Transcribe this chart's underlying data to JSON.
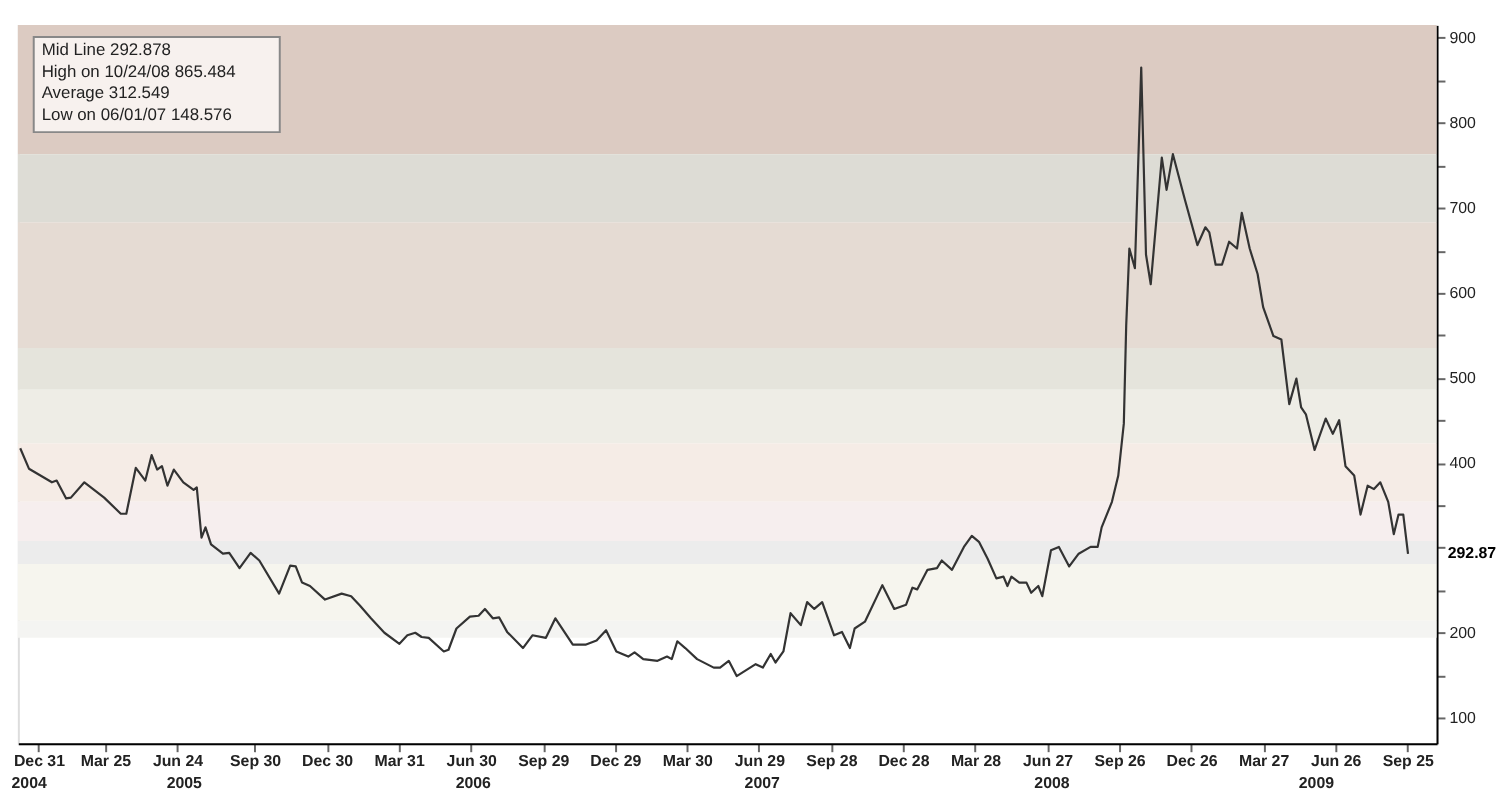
{
  "chart_data": {
    "type": "line",
    "x": [
      "2004-12-08",
      "2004-12-19",
      "2005-01-17",
      "2005-01-23",
      "2005-02-04",
      "2005-02-10",
      "2005-02-27",
      "2005-03-24",
      "2005-04-14",
      "2005-04-21",
      "2005-05-03",
      "2005-05-15",
      "2005-05-23",
      "2005-05-30",
      "2005-06-05",
      "2005-06-12",
      "2005-06-20",
      "2005-07-02",
      "2005-07-15",
      "2005-07-19",
      "2005-07-25",
      "2005-07-30",
      "2005-08-06",
      "2005-08-21",
      "2005-08-29",
      "2005-09-11",
      "2005-09-25",
      "2005-10-06",
      "2005-10-31",
      "2005-11-14",
      "2005-11-21",
      "2005-11-29",
      "2005-12-09",
      "2005-12-28",
      "2006-01-18",
      "2006-01-30",
      "2006-02-10",
      "2006-02-24",
      "2006-03-13",
      "2006-04-01",
      "2006-04-11",
      "2006-04-21",
      "2006-04-29",
      "2006-05-08",
      "2006-05-27",
      "2006-06-02",
      "2006-06-12",
      "2006-06-29",
      "2006-07-10",
      "2006-07-18",
      "2006-07-28",
      "2006-08-05",
      "2006-08-15",
      "2006-09-04",
      "2006-09-16",
      "2006-10-03",
      "2006-10-15",
      "2006-11-06",
      "2006-11-22",
      "2006-12-06",
      "2006-12-18",
      "2006-12-31",
      "2007-01-15",
      "2007-01-23",
      "2007-02-03",
      "2007-02-21",
      "2007-03-05",
      "2007-03-11",
      "2007-03-18",
      "2007-03-28",
      "2007-04-12",
      "2007-05-03",
      "2007-05-11",
      "2007-05-22",
      "2007-06-01",
      "2007-06-25",
      "2007-07-04",
      "2007-07-14",
      "2007-07-20",
      "2007-07-30",
      "2007-08-08",
      "2007-08-21",
      "2007-08-29",
      "2007-09-07",
      "2007-09-17",
      "2007-10-02",
      "2007-10-12",
      "2007-10-22",
      "2007-10-28",
      "2007-11-10",
      "2007-12-02",
      "2007-12-17",
      "2008-01-01",
      "2008-01-09",
      "2008-01-15",
      "2008-01-28",
      "2008-02-09",
      "2008-02-15",
      "2008-02-28",
      "2008-03-14",
      "2008-03-24",
      "2008-04-02",
      "2008-04-13",
      "2008-04-24",
      "2008-05-03",
      "2008-05-08",
      "2008-05-13",
      "2008-05-23",
      "2008-06-01",
      "2008-06-07",
      "2008-06-16",
      "2008-06-21",
      "2008-07-02",
      "2008-07-12",
      "2008-07-25",
      "2008-08-06",
      "2008-08-21",
      "2008-08-30",
      "2008-09-04",
      "2008-09-17",
      "2008-09-25",
      "2008-10-02",
      "2008-10-05",
      "2008-10-09",
      "2008-10-16",
      "2008-10-24",
      "2008-10-30",
      "2008-11-05",
      "2008-11-19",
      "2008-11-25",
      "2008-12-03",
      "2008-12-18",
      "2009-01-03",
      "2009-01-13",
      "2009-01-18",
      "2009-01-26",
      "2009-02-03",
      "2009-02-12",
      "2009-02-22",
      "2009-02-28",
      "2009-03-10",
      "2009-03-20",
      "2009-03-27",
      "2009-04-09",
      "2009-04-19",
      "2009-04-29",
      "2009-05-08",
      "2009-05-14",
      "2009-05-20",
      "2009-05-31",
      "2009-06-14",
      "2009-06-23",
      "2009-07-01",
      "2009-07-09",
      "2009-07-20",
      "2009-07-28",
      "2009-08-06",
      "2009-08-14",
      "2009-08-22",
      "2009-09-01",
      "2009-09-08",
      "2009-09-14",
      "2009-09-20",
      "2009-09-26"
    ],
    "series": [
      {
        "color": "#333333",
        "values": [
          417,
          393,
          377,
          379,
          358,
          359,
          377,
          359,
          340,
          340,
          394,
          379,
          409,
          392,
          396,
          373,
          392,
          377,
          368,
          371,
          312,
          324,
          304,
          293,
          294,
          276,
          294,
          285,
          246,
          279,
          278,
          259,
          255,
          239,
          246,
          243,
          232,
          217,
          200,
          187,
          197,
          200,
          195,
          194,
          178,
          180,
          205,
          219,
          220,
          228,
          217,
          218,
          201,
          182,
          197,
          194,
          217,
          186,
          186,
          191,
          203,
          178,
          172,
          177,
          169,
          167,
          172,
          169,
          190,
          182,
          169,
          159,
          159,
          167,
          149,
          163,
          159,
          175,
          165,
          178,
          223,
          209,
          236,
          228,
          236,
          197,
          201,
          182,
          205,
          213,
          256,
          228,
          233,
          253,
          251,
          274,
          276,
          285,
          274,
          301,
          314,
          307,
          287,
          264,
          266,
          255,
          266,
          259,
          259,
          247,
          255,
          243,
          297,
          301,
          278,
          293,
          301,
          301,
          324,
          354,
          385,
          446,
          561,
          652,
          629,
          865,
          645,
          610,
          759,
          721,
          763,
          710,
          656,
          677,
          671,
          633,
          633,
          660,
          652,
          694,
          652,
          622,
          583,
          549,
          545,
          469,
          499,
          465,
          457,
          415,
          452,
          434,
          450,
          396,
          385,
          339,
          373,
          369,
          377,
          354,
          316,
          339,
          339,
          292.87
        ]
      }
    ],
    "xlim": [
      "2004-12-05",
      "2009-11-01"
    ],
    "xticks": [
      {
        "value": "2004-12-31",
        "label": "Dec 31"
      },
      {
        "value": "2005-03-25",
        "label": "Mar 25"
      },
      {
        "value": "2005-06-24",
        "label": "Jun 24"
      },
      {
        "value": "2005-09-30",
        "label": "Sep 30"
      },
      {
        "value": "2005-12-30",
        "label": "Dec 30"
      },
      {
        "value": "2006-03-31",
        "label": "Mar 31"
      },
      {
        "value": "2006-06-30",
        "label": "Jun 30"
      },
      {
        "value": "2006-09-29",
        "label": "Sep 29"
      },
      {
        "value": "2006-12-29",
        "label": "Dec 29"
      },
      {
        "value": "2007-03-30",
        "label": "Mar 30"
      },
      {
        "value": "2007-06-29",
        "label": "Jun 29"
      },
      {
        "value": "2007-09-28",
        "label": "Sep 28"
      },
      {
        "value": "2007-12-28",
        "label": "Dec 28"
      },
      {
        "value": "2008-03-28",
        "label": "Mar 28"
      },
      {
        "value": "2008-06-27",
        "label": "Jun 27"
      },
      {
        "value": "2008-09-26",
        "label": "Sep 26"
      },
      {
        "value": "2008-12-26",
        "label": "Dec 26"
      },
      {
        "value": "2009-03-27",
        "label": "Mar 27"
      },
      {
        "value": "2009-06-26",
        "label": "Jun 26"
      },
      {
        "value": "2009-09-25",
        "label": "Sep 25"
      }
    ],
    "x2lim": [
      "2004-12-05",
      "2009-11-01"
    ],
    "x2ticks": [
      {
        "value": "2004-12-18",
        "label": "2004"
      },
      {
        "value": "2005-07-02",
        "label": "2005"
      },
      {
        "value": "2006-07-02",
        "label": "2006"
      },
      {
        "value": "2007-07-02",
        "label": "2007"
      },
      {
        "value": "2008-07-02",
        "label": "2008"
      },
      {
        "value": "2009-06-01",
        "label": "2009"
      }
    ],
    "ylim": [
      70,
      915
    ],
    "yticks": [
      100,
      {
        "value": 150,
        "label": null
      },
      200,
      {
        "value": 250,
        "label": null
      },
      {
        "value": 300,
        "label": null
      },
      {
        "value": 350,
        "label": null
      },
      400,
      {
        "value": 450,
        "label": null
      },
      500,
      {
        "value": 550,
        "label": null
      },
      600,
      {
        "value": 650,
        "label": null
      },
      700,
      {
        "value": 750,
        "label": null
      },
      800,
      {
        "value": 850,
        "label": null
      },
      900
    ],
    "bands": [
      {
        "axis": "y",
        "from": 763,
        "to": 915,
        "color": "#dccbc2"
      },
      {
        "axis": "y",
        "from": 683,
        "to": 763,
        "color": "#dddcd5"
      },
      {
        "axis": "y",
        "from": 535,
        "to": 683,
        "color": "#e5dbd3"
      },
      {
        "axis": "y",
        "from": 486,
        "to": 535,
        "color": "#e5e4dc"
      },
      {
        "axis": "y",
        "from": 423,
        "to": 486,
        "color": "#eeede6"
      },
      {
        "axis": "y",
        "from": 354,
        "to": 423,
        "color": "#f5ece6"
      },
      {
        "axis": "y",
        "from": 308,
        "to": 354,
        "color": "#f6eeee"
      },
      {
        "axis": "y",
        "from": 281,
        "to": 308,
        "color": "#ececec"
      },
      {
        "axis": "y",
        "from": 214,
        "to": 281,
        "color": "#f6f5ee"
      },
      {
        "axis": "y",
        "from": 194,
        "to": 214,
        "color": "#f4f4f2"
      }
    ],
    "annotations": [
      "Mid Line 292.878",
      "High on 10/24/08 865.484",
      "Average 312.549",
      "Low on 06/01/07 148.576",
      {
        "text": "292.87",
        "x": "2009-09-26",
        "y": 292.87
      }
    ],
    "grid": false
  }
}
